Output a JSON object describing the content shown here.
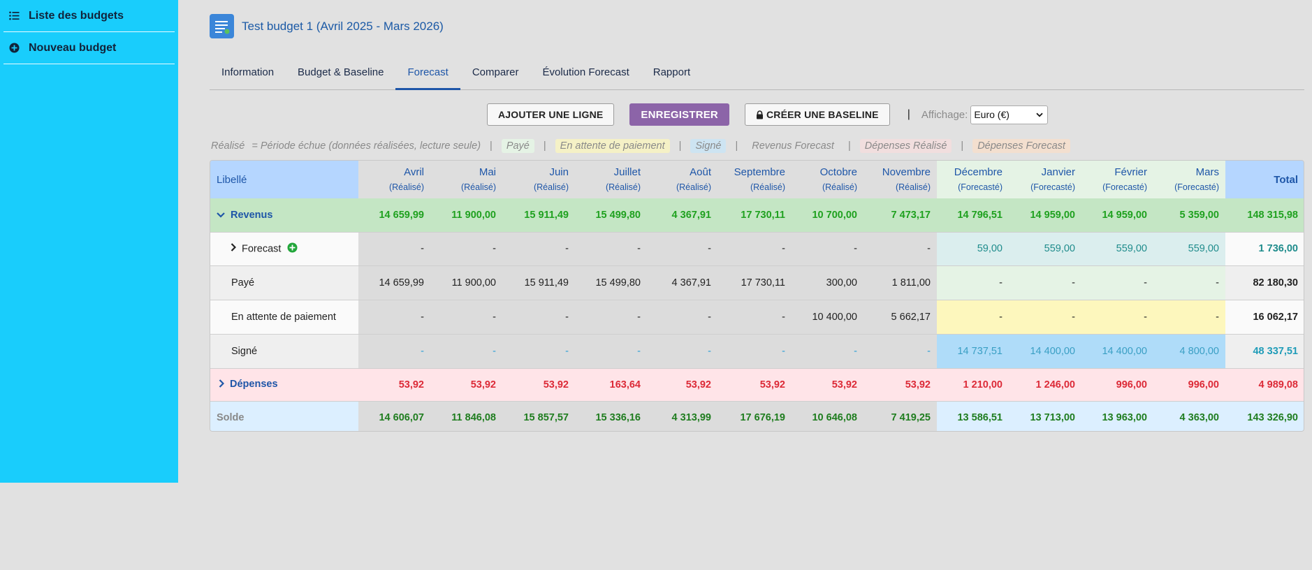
{
  "sidebar": {
    "items": [
      {
        "label": "Liste des budgets",
        "icon": "list-icon"
      },
      {
        "label": "Nouveau budget",
        "icon": "plus-circle-icon"
      }
    ]
  },
  "header": {
    "title": "Test budget 1 (Avril 2025 - Mars 2026)",
    "icon": "document-icon"
  },
  "tabs": [
    {
      "label": "Information",
      "active": false
    },
    {
      "label": "Budget & Baseline",
      "active": false
    },
    {
      "label": "Forecast",
      "active": true
    },
    {
      "label": "Comparer",
      "active": false
    },
    {
      "label": "Évolution Forecast",
      "active": false
    },
    {
      "label": "Rapport",
      "active": false
    }
  ],
  "toolbar": {
    "add_line_label": "AJOUTER UNE LIGNE",
    "save_label": "ENREGISTRER",
    "baseline_label": "CRÉER UNE BASELINE",
    "separator": "|",
    "display_label": "Affichage:",
    "display_value": "Euro (€)"
  },
  "legend": {
    "realise_label": "Réalisé",
    "realise_desc": "= Période échue (données réalisées, lecture seule)",
    "paye": "Payé",
    "attente": "En attente de paiement",
    "signe": "Signé",
    "revenus_forecast": "Revenus Forecast",
    "depenses_realise": "Dépenses Réalisé",
    "depenses_forecast": "Dépenses Forecast",
    "pipe": "|"
  },
  "table": {
    "label_header": "Libellé",
    "total_header": "Total",
    "months": [
      {
        "name": "Avril",
        "status": "(Réalisé)"
      },
      {
        "name": "Mai",
        "status": "(Réalisé)"
      },
      {
        "name": "Juin",
        "status": "(Réalisé)"
      },
      {
        "name": "Juillet",
        "status": "(Réalisé)"
      },
      {
        "name": "Août",
        "status": "(Réalisé)"
      },
      {
        "name": "Septembre",
        "status": "(Réalisé)"
      },
      {
        "name": "Octobre",
        "status": "(Réalisé)"
      },
      {
        "name": "Novembre",
        "status": "(Réalisé)"
      },
      {
        "name": "Décembre",
        "status": "(Forecasté)"
      },
      {
        "name": "Janvier",
        "status": "(Forecasté)"
      },
      {
        "name": "Février",
        "status": "(Forecasté)"
      },
      {
        "name": "Mars",
        "status": "(Forecasté)"
      }
    ],
    "rows": {
      "revenus": {
        "label": "Revenus",
        "values": [
          "14 659,99",
          "11 900,00",
          "15 911,49",
          "15 499,80",
          "4 367,91",
          "17 730,11",
          "10 700,00",
          "7 473,17",
          "14 796,51",
          "14 959,00",
          "14 959,00",
          "5 359,00"
        ],
        "total": "148 315,98"
      },
      "forecast": {
        "label": "Forecast",
        "values": [
          "-",
          "-",
          "-",
          "-",
          "-",
          "-",
          "-",
          "-",
          "59,00",
          "559,00",
          "559,00",
          "559,00"
        ],
        "total": "1 736,00"
      },
      "paye": {
        "label": "Payé",
        "values": [
          "14 659,99",
          "11 900,00",
          "15 911,49",
          "15 499,80",
          "4 367,91",
          "17 730,11",
          "300,00",
          "1 811,00",
          "-",
          "-",
          "-",
          "-"
        ],
        "total": "82 180,30"
      },
      "attente": {
        "label": "En attente de paiement",
        "values": [
          "-",
          "-",
          "-",
          "-",
          "-",
          "-",
          "10 400,00",
          "5 662,17",
          "-",
          "-",
          "-",
          "-"
        ],
        "total": "16 062,17"
      },
      "signe": {
        "label": "Signé",
        "values": [
          "-",
          "-",
          "-",
          "-",
          "-",
          "-",
          "-",
          "-",
          "14 737,51",
          "14 400,00",
          "14 400,00",
          "4 800,00"
        ],
        "total": "48 337,51"
      },
      "depenses": {
        "label": "Dépenses",
        "values": [
          "53,92",
          "53,92",
          "53,92",
          "163,64",
          "53,92",
          "53,92",
          "53,92",
          "53,92",
          "1 210,00",
          "1 246,00",
          "996,00",
          "996,00"
        ],
        "total": "4 989,08"
      },
      "solde": {
        "label": "Solde",
        "values": [
          "14 606,07",
          "11 846,08",
          "15 857,57",
          "15 336,16",
          "4 313,99",
          "17 676,19",
          "10 646,08",
          "7 419,25",
          "13 586,51",
          "13 713,00",
          "13 963,00",
          "4 363,00"
        ],
        "total": "143 326,90"
      }
    }
  },
  "colors": {
    "sidebar": "#19cdfc",
    "accent": "#1e56a8",
    "save_button": "#8c64a8",
    "revenue_green": "#1fa11f",
    "expense_red": "#dc2a37",
    "forecast_teal": "#1f8c8c",
    "signed_blue": "#2a9fd6"
  }
}
